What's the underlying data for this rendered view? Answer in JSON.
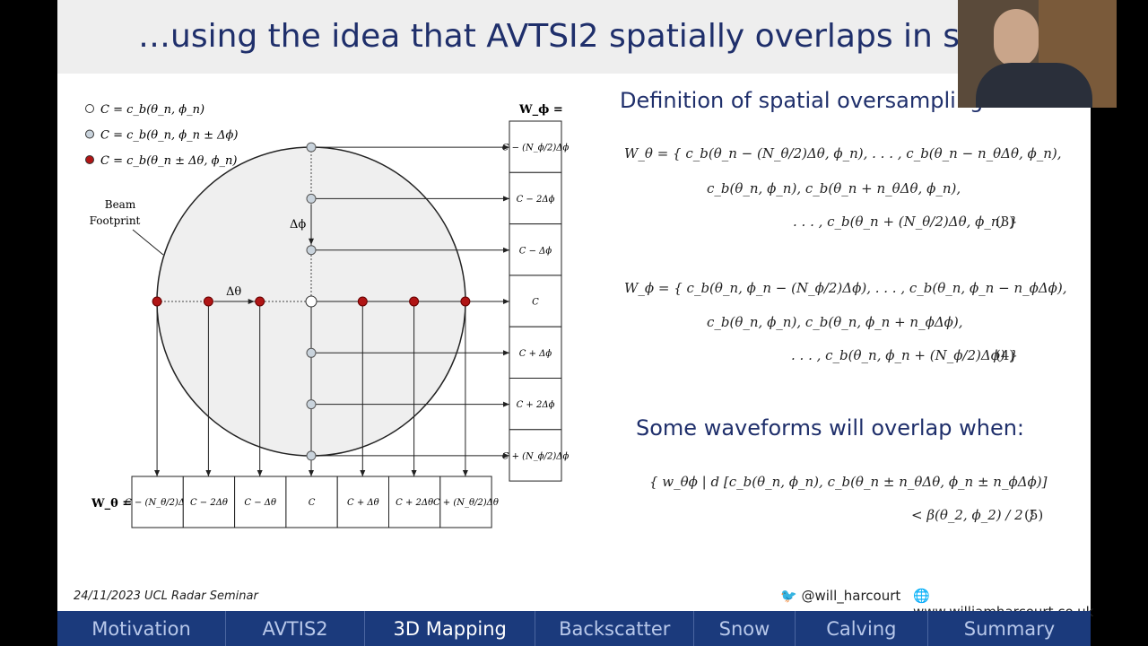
{
  "header": {
    "title": "…using the idea that AVTSI2 spatially overlaps in spa"
  },
  "legend": [
    "C = c_b(θ_n, ϕ_n)",
    "C = c_b(θ_n, ϕ_n ± Δϕ)",
    "C = c_b(θ_n ± Δθ, ϕ_n)"
  ],
  "diagram": {
    "beam_label": [
      "Beam",
      "Footprint"
    ],
    "delta_phi": "Δϕ",
    "delta_theta": "Δθ",
    "w_phi_label": "W_ϕ =",
    "w_theta_label": "W_θ =",
    "phi_cells": [
      "C − (N_ϕ/2)Δϕ",
      "C − 2Δϕ",
      "C − Δϕ",
      "C",
      "C + Δϕ",
      "C + 2Δϕ",
      "C + (N_ϕ/2)Δϕ"
    ],
    "theta_cells": [
      "C − (N_θ/2)Δθ",
      "C − 2Δθ",
      "C − Δθ",
      "C",
      "C + Δθ",
      "C + 2Δθ",
      "C + (N_θ/2)Δθ"
    ]
  },
  "right": {
    "definition_heading": "Definition of spatial oversampling:",
    "eq3": [
      "W_θ = { c_b(θ_n − (N_θ/2)Δθ, ϕ_n), . . . , c_b(θ_n − n_θΔθ, ϕ_n),",
      "c_b(θ_n, ϕ_n), c_b(θ_n + n_θΔθ, ϕ_n),",
      ". . . , c_b(θ_n + (N_θ/2)Δθ, ϕ_n) }"
    ],
    "eq3_number": "(3)",
    "eq4": [
      "W_ϕ = { c_b(θ_n, ϕ_n − (N_ϕ/2)Δϕ), . . . , c_b(θ_n, ϕ_n − n_ϕΔϕ),",
      "c_b(θ_n, ϕ_n), c_b(θ_n, ϕ_n + n_ϕΔϕ),",
      ". . . , c_b(θ_n, ϕ_n + (N_ϕ/2)Δϕ) }"
    ],
    "eq4_number": "(4)",
    "overlap_heading": "Some waveforms will overlap when:",
    "eq5": [
      "{ w_θϕ | d [c_b(θ_n, ϕ_n), c_b(θ_n ± n_θΔθ, ϕ_n ± n_ϕΔϕ)]",
      "< β(θ_2, ϕ_2) / 2 }"
    ],
    "eq5_number": "(5)"
  },
  "footer": {
    "date": "24/11/2023 UCL Radar Seminar",
    "twitter": "@will_harcourt",
    "website": "www.williamharcourt.co.uk"
  },
  "nav": [
    "Motivation",
    "AVTIS2",
    "3D Mapping",
    "Backscatter",
    "Snow",
    "Calving",
    "Summary"
  ]
}
